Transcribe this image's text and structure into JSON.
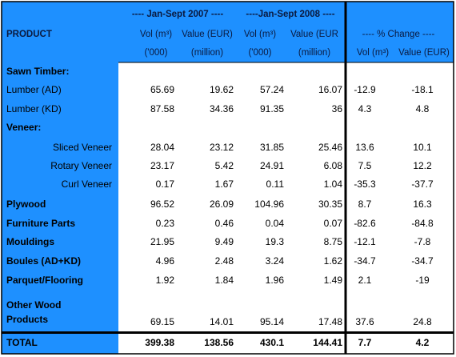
{
  "table": {
    "header": {
      "periods": [
        "---- Jan-Sept 2007 ----",
        "----Jan-Sept 2008 ----"
      ],
      "row1": [
        "PRODUCT",
        "Vol (m³)",
        "Value (EUR)",
        "Vol (m³)",
        "Value (EUR",
        "----  % Change  ----"
      ],
      "row2": [
        "('000)",
        "(million)",
        "('000)",
        "(million)",
        "Vol (m³)",
        "Value (EUR)"
      ]
    },
    "rows": [
      {
        "label": "Sawn Timber:",
        "style": "section"
      },
      {
        "label": "Lumber (AD)",
        "values": [
          65.69,
          19.62,
          57.24,
          16.07,
          -12.9,
          -18.1
        ]
      },
      {
        "label": "Lumber (KD)",
        "values": [
          87.58,
          34.36,
          91.35,
          36,
          4.3,
          4.8
        ]
      },
      {
        "label": "Veneer:",
        "style": "section"
      },
      {
        "label": "Sliced Veneer",
        "style": "indent",
        "values": [
          28.04,
          23.12,
          31.85,
          25.46,
          13.6,
          10.1
        ]
      },
      {
        "label": "Rotary Veneer",
        "style": "indent",
        "values": [
          23.17,
          5.42,
          24.91,
          6.08,
          7.5,
          12.2
        ]
      },
      {
        "label": "Curl Veneer",
        "style": "indent",
        "values": [
          0.17,
          1.67,
          0.11,
          1.04,
          -35.3,
          -37.7
        ]
      },
      {
        "label": "Plywood",
        "style": "bold",
        "values": [
          96.52,
          26.09,
          104.96,
          30.35,
          8.7,
          16.3
        ]
      },
      {
        "label": "Furniture Parts",
        "style": "bold",
        "values": [
          0.23,
          0.46,
          0.04,
          0.07,
          -82.6,
          -84.8
        ]
      },
      {
        "label": "Mouldings",
        "style": "bold",
        "values": [
          21.95,
          9.49,
          19.3,
          8.75,
          -12.1,
          -7.8
        ]
      },
      {
        "label": "Boules (AD+KD)",
        "style": "bold",
        "values": [
          4.96,
          2.48,
          3.24,
          1.62,
          -34.7,
          -34.7
        ]
      },
      {
        "label": "Parquet/Flooring",
        "style": "bold",
        "values": [
          1.92,
          1.84,
          1.96,
          1.49,
          2.1,
          -19
        ]
      },
      {
        "label": [
          "Other Wood",
          "Products"
        ],
        "style": "bold",
        "values": [
          69.15,
          14.01,
          95.14,
          17.48,
          37.6,
          24.8
        ]
      }
    ],
    "total": {
      "label": "TOTAL",
      "values": [
        399.38,
        138.56,
        430.1,
        144.41,
        7.7,
        4.2
      ]
    }
  }
}
